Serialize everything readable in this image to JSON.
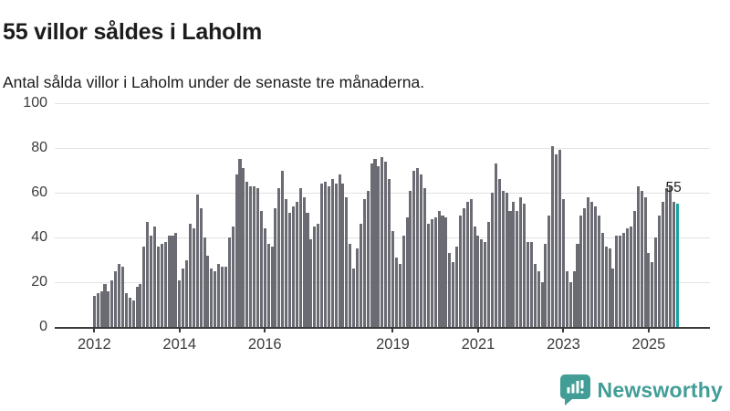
{
  "title": "55 villor såldes i Laholm",
  "subtitle": "Antal sålda villor i Laholm under de senaste tre månaderna.",
  "annotation": {
    "last_value_label": "55"
  },
  "colors": {
    "bar": "#6b6b74",
    "highlight": "#18a3a1",
    "grid": "#e2e2e2",
    "axis": "#3b3b3b",
    "text": "#1c1c1c",
    "brand": "#429d97"
  },
  "footer": {
    "brand": "Newsworthy"
  },
  "chart_data": {
    "type": "bar",
    "title": "55 villor såldes i Laholm",
    "subtitle": "Antal sålda villor i Laholm under de senaste tre månaderna.",
    "frequency": "monthly",
    "x_start": "2012-01",
    "x_end": "2025-09",
    "ylim": [
      0,
      100
    ],
    "grid": true,
    "y_ticks": [
      0,
      20,
      40,
      60,
      80,
      100
    ],
    "x_tick_labels": [
      "2012",
      "2014",
      "2016",
      "2019",
      "2021",
      "2023",
      "2025"
    ],
    "x_tick_months": [
      0,
      24,
      48,
      84,
      108,
      132,
      156
    ],
    "highlight_last_bar": true,
    "last_value_label": "55",
    "values": [
      14,
      15,
      16,
      19,
      16,
      21,
      25,
      28,
      27,
      15,
      13,
      12,
      18,
      19,
      36,
      47,
      41,
      45,
      36,
      37,
      38,
      41,
      41,
      42,
      21,
      26,
      30,
      46,
      44,
      59,
      53,
      40,
      32,
      26,
      25,
      28,
      27,
      27,
      40,
      45,
      68,
      75,
      71,
      65,
      63,
      63,
      62,
      52,
      44,
      37,
      36,
      53,
      62,
      70,
      57,
      51,
      54,
      56,
      62,
      58,
      51,
      39,
      45,
      46,
      64,
      65,
      63,
      66,
      64,
      68,
      64,
      58,
      37,
      26,
      35,
      46,
      57,
      61,
      73,
      75,
      72,
      76,
      74,
      66,
      43,
      31,
      28,
      41,
      49,
      61,
      70,
      71,
      68,
      62,
      46,
      48,
      49,
      52,
      50,
      49,
      33,
      29,
      36,
      50,
      53,
      56,
      57,
      45,
      41,
      39,
      38,
      47,
      60,
      73,
      66,
      61,
      60,
      52,
      56,
      52,
      58,
      55,
      38,
      38,
      28,
      25,
      20,
      37,
      50,
      81,
      77,
      79,
      57,
      25,
      20,
      25,
      37,
      50,
      53,
      58,
      56,
      54,
      50,
      42,
      36,
      35,
      26,
      41,
      41,
      42,
      44,
      45,
      52,
      63,
      61,
      58,
      33,
      29,
      40,
      50,
      56,
      62,
      63,
      56,
      55
    ]
  }
}
